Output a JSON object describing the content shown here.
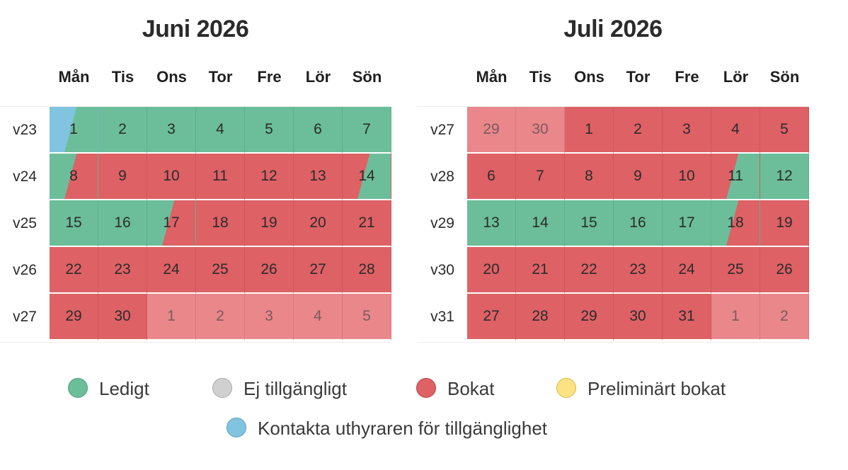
{
  "colors": {
    "free": "#6bbe99",
    "unavailable": "#d0d0d0",
    "booked": "#de6165",
    "preliminary": "#fde283",
    "contact": "#80c4df",
    "booked_other_month": "#e9878a"
  },
  "months": [
    {
      "title": "Juni 2026",
      "weekdays": [
        "Mån",
        "Tis",
        "Ons",
        "Tor",
        "Fre",
        "Lör",
        "Sön"
      ],
      "weeks": [
        {
          "label": "v23",
          "days": [
            {
              "d": "1",
              "s": "split-contact-to-free"
            },
            {
              "d": "2",
              "s": "s-free"
            },
            {
              "d": "3",
              "s": "s-free"
            },
            {
              "d": "4",
              "s": "s-free"
            },
            {
              "d": "5",
              "s": "s-free"
            },
            {
              "d": "6",
              "s": "s-free"
            },
            {
              "d": "7",
              "s": "s-free"
            }
          ]
        },
        {
          "label": "v24",
          "days": [
            {
              "d": "8",
              "s": "split-free-to-booked"
            },
            {
              "d": "9",
              "s": "s-booked"
            },
            {
              "d": "10",
              "s": "s-booked"
            },
            {
              "d": "11",
              "s": "s-booked"
            },
            {
              "d": "12",
              "s": "s-booked"
            },
            {
              "d": "13",
              "s": "s-booked"
            },
            {
              "d": "14",
              "s": "split-booked-to-free"
            }
          ]
        },
        {
          "label": "v25",
          "days": [
            {
              "d": "15",
              "s": "s-free"
            },
            {
              "d": "16",
              "s": "s-free"
            },
            {
              "d": "17",
              "s": "split-free-to-booked"
            },
            {
              "d": "18",
              "s": "s-booked"
            },
            {
              "d": "19",
              "s": "s-booked"
            },
            {
              "d": "20",
              "s": "s-booked"
            },
            {
              "d": "21",
              "s": "s-booked"
            }
          ]
        },
        {
          "label": "v26",
          "days": [
            {
              "d": "22",
              "s": "s-booked"
            },
            {
              "d": "23",
              "s": "s-booked"
            },
            {
              "d": "24",
              "s": "s-booked"
            },
            {
              "d": "25",
              "s": "s-booked"
            },
            {
              "d": "26",
              "s": "s-booked"
            },
            {
              "d": "27",
              "s": "s-booked"
            },
            {
              "d": "28",
              "s": "s-booked"
            }
          ]
        },
        {
          "label": "v27",
          "days": [
            {
              "d": "29",
              "s": "s-booked"
            },
            {
              "d": "30",
              "s": "s-booked"
            },
            {
              "d": "1",
              "s": "s-other-booked"
            },
            {
              "d": "2",
              "s": "s-other-booked"
            },
            {
              "d": "3",
              "s": "s-other-booked"
            },
            {
              "d": "4",
              "s": "s-other-booked"
            },
            {
              "d": "5",
              "s": "s-other-booked"
            }
          ]
        }
      ]
    },
    {
      "title": "Juli 2026",
      "weekdays": [
        "Mån",
        "Tis",
        "Ons",
        "Tor",
        "Fre",
        "Lör",
        "Sön"
      ],
      "weeks": [
        {
          "label": "v27",
          "days": [
            {
              "d": "29",
              "s": "s-other-booked"
            },
            {
              "d": "30",
              "s": "s-other-booked"
            },
            {
              "d": "1",
              "s": "s-booked"
            },
            {
              "d": "2",
              "s": "s-booked"
            },
            {
              "d": "3",
              "s": "s-booked"
            },
            {
              "d": "4",
              "s": "s-booked"
            },
            {
              "d": "5",
              "s": "s-booked"
            }
          ]
        },
        {
          "label": "v28",
          "days": [
            {
              "d": "6",
              "s": "s-booked"
            },
            {
              "d": "7",
              "s": "s-booked"
            },
            {
              "d": "8",
              "s": "s-booked"
            },
            {
              "d": "9",
              "s": "s-booked"
            },
            {
              "d": "10",
              "s": "s-booked"
            },
            {
              "d": "11",
              "s": "split-booked-to-free"
            },
            {
              "d": "12",
              "s": "s-free"
            }
          ]
        },
        {
          "label": "v29",
          "days": [
            {
              "d": "13",
              "s": "s-free"
            },
            {
              "d": "14",
              "s": "s-free"
            },
            {
              "d": "15",
              "s": "s-free"
            },
            {
              "d": "16",
              "s": "s-free"
            },
            {
              "d": "17",
              "s": "s-free"
            },
            {
              "d": "18",
              "s": "split-free-to-booked"
            },
            {
              "d": "19",
              "s": "s-booked"
            }
          ]
        },
        {
          "label": "v30",
          "days": [
            {
              "d": "20",
              "s": "s-booked"
            },
            {
              "d": "21",
              "s": "s-booked"
            },
            {
              "d": "22",
              "s": "s-booked"
            },
            {
              "d": "23",
              "s": "s-booked"
            },
            {
              "d": "24",
              "s": "s-booked"
            },
            {
              "d": "25",
              "s": "s-booked"
            },
            {
              "d": "26",
              "s": "s-booked"
            }
          ]
        },
        {
          "label": "v31",
          "days": [
            {
              "d": "27",
              "s": "s-booked"
            },
            {
              "d": "28",
              "s": "s-booked"
            },
            {
              "d": "29",
              "s": "s-booked"
            },
            {
              "d": "30",
              "s": "s-booked"
            },
            {
              "d": "31",
              "s": "s-booked"
            },
            {
              "d": "1",
              "s": "s-other-booked"
            },
            {
              "d": "2",
              "s": "s-other-booked"
            }
          ]
        }
      ]
    }
  ],
  "legend": {
    "free": "Ledigt",
    "unavailable": "Ej tillgängligt",
    "booked": "Bokat",
    "preliminary": "Preliminärt bokat",
    "contact": "Kontakta uthyraren för tillgänglighet"
  }
}
